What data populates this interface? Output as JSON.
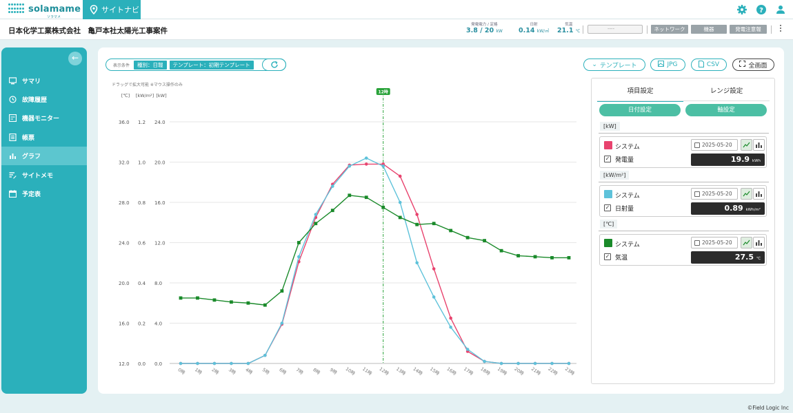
{
  "header": {
    "logo_text": "solamame",
    "logo_sub": "ソラマメ",
    "nav_tab": "サイトナビ",
    "icons": [
      "gear-icon",
      "help-icon",
      "user-icon"
    ]
  },
  "subheader": {
    "company": "日本化学工業株式会社　亀戸本社太陽光工事案件",
    "metrics": [
      {
        "label": "発電電力 / 定格",
        "value": "3.8 / 20",
        "unit": "kW"
      },
      {
        "label": "日射",
        "value": "0.14",
        "unit": "kW/㎡"
      },
      {
        "label": "気温",
        "value": "21.1",
        "unit": "℃"
      }
    ],
    "status_placeholder": "----",
    "status_buttons": [
      "ネットワーク",
      "機器",
      "発電注意報"
    ]
  },
  "sidebar": {
    "items": [
      {
        "label": "サマリ",
        "icon": "monitor-icon",
        "active": false
      },
      {
        "label": "故障履歴",
        "icon": "history-icon",
        "active": false
      },
      {
        "label": "機器モニター",
        "icon": "device-monitor-icon",
        "active": false
      },
      {
        "label": "帳票",
        "icon": "report-icon",
        "active": false
      },
      {
        "label": "グラフ",
        "icon": "bar-chart-icon",
        "active": true
      },
      {
        "label": "サイトメモ",
        "icon": "memo-icon",
        "active": false
      },
      {
        "label": "予定表",
        "icon": "calendar-icon",
        "active": false
      }
    ]
  },
  "toolbar": {
    "condition_label": "表示条件",
    "tags": [
      "種別：日報",
      "テンプレート：初期テンプレート"
    ],
    "template_btn": "テンプレート",
    "jpg_btn": "JPG",
    "csv_btn": "CSV",
    "fullscreen_btn": "全画面"
  },
  "chart_data": {
    "type": "line",
    "hint": "ドラッグで拡大可能 ※マウス操作のみ",
    "marker_label": "12時",
    "marker_x": "12時",
    "categories": [
      "0時",
      "1時",
      "2時",
      "3時",
      "4時",
      "5時",
      "6時",
      "7時",
      "8時",
      "9時",
      "10時",
      "11時",
      "12時",
      "13時",
      "14時",
      "15時",
      "16時",
      "17時",
      "18時",
      "19時",
      "20時",
      "21時",
      "22時",
      "23時"
    ],
    "axes": [
      {
        "unit": "[℃]",
        "ticks": [
          "36.0",
          "32.0",
          "28.0",
          "24.0",
          "20.0",
          "16.0",
          "12.0"
        ],
        "ylim": [
          12,
          36
        ]
      },
      {
        "unit": "[kW/m²]",
        "ticks": [
          "1.2",
          "1.0",
          "0.8",
          "0.6",
          "0.4",
          "0.2",
          "0.0"
        ],
        "ylim": [
          0,
          1.2
        ]
      },
      {
        "unit": "[kW]",
        "ticks": [
          "24.0",
          "20.0",
          "16.0",
          "12.0",
          "8.0",
          "4.0",
          "0.0"
        ],
        "ylim": [
          0,
          24
        ]
      }
    ],
    "grid": true,
    "series": [
      {
        "color": "#e8436e",
        "marker": "circle",
        "axis": 2,
        "values": [
          0,
          0,
          0,
          0,
          0,
          0.8,
          3.9,
          10.1,
          14.5,
          17.8,
          19.7,
          19.8,
          19.8,
          18.6,
          14.8,
          9.4,
          4.5,
          1.2,
          0.2,
          0,
          0,
          0,
          0,
          0
        ]
      },
      {
        "color": "#5ec2da",
        "marker": "circle",
        "axis": 1,
        "values": [
          0,
          0,
          0,
          0,
          0,
          0.04,
          0.2,
          0.53,
          0.74,
          0.88,
          0.98,
          1.02,
          0.98,
          0.8,
          0.5,
          0.33,
          0.18,
          0.07,
          0.01,
          0,
          0,
          0,
          0,
          0
        ]
      },
      {
        "color": "#1a8a2a",
        "marker": "square",
        "axis": 0,
        "values": [
          18.5,
          18.5,
          18.3,
          18.1,
          18.0,
          17.8,
          19.2,
          24.0,
          25.9,
          27.2,
          28.7,
          28.5,
          27.5,
          26.5,
          25.8,
          25.9,
          25.2,
          24.5,
          24.2,
          23.2,
          22.7,
          22.6,
          22.5,
          22.5
        ]
      }
    ]
  },
  "panel": {
    "tabs": [
      "項目設定",
      "レンジ設定"
    ],
    "buttons": [
      "日付設定",
      "軸設定"
    ],
    "groups": [
      {
        "unit": "[kW]",
        "color": "#e8436e",
        "series_name": "システム",
        "date": "2025-05-20",
        "metric": "発電量",
        "value": "19.9",
        "value_unit": "kWh"
      },
      {
        "unit": "[kW/m²]",
        "color": "#5ec2da",
        "series_name": "システム",
        "date": "2025-05-20",
        "metric": "日射量",
        "value": "0.89",
        "value_unit": "kWh/m²"
      },
      {
        "unit": "[℃]",
        "color": "#1a8a2a",
        "series_name": "システム",
        "date": "2025-05-20",
        "metric": "気温",
        "value": "27.5",
        "value_unit": "℃"
      }
    ]
  },
  "footer": {
    "copyright": "©Field Logic Inc"
  }
}
